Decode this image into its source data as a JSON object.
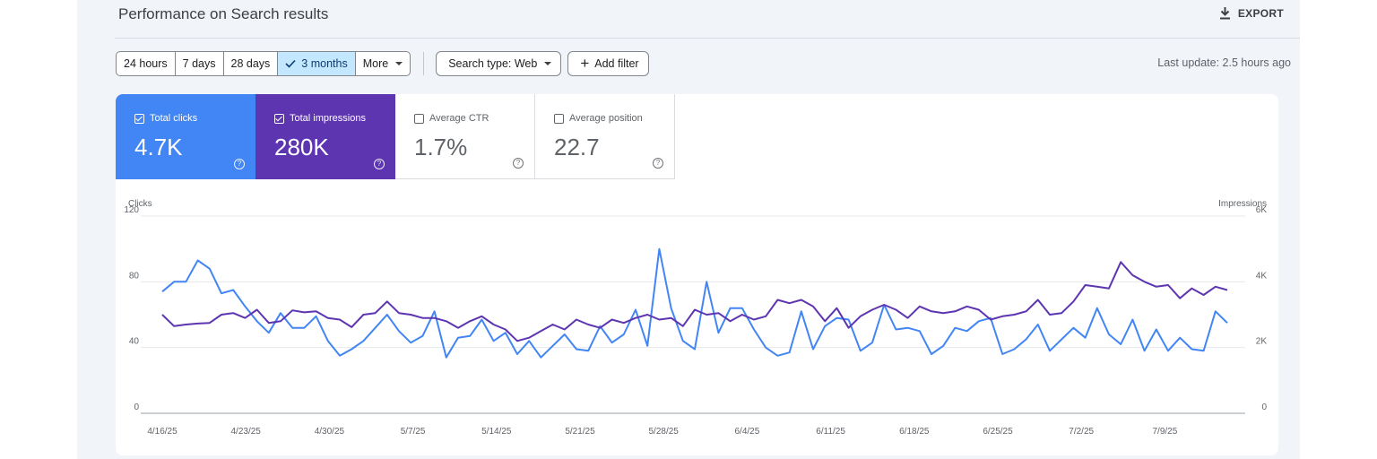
{
  "header": {
    "title": "Performance on Search results",
    "export_label": "EXPORT",
    "export_icon": "download-icon"
  },
  "toolbar": {
    "ranges": [
      "24 hours",
      "7 days",
      "28 days",
      "3 months",
      "More"
    ],
    "active_range": "3 months",
    "search_type_label": "Search type: Web",
    "add_filter_label": "Add filter",
    "last_update": "Last update: 2.5 hours ago"
  },
  "metrics": [
    {
      "label": "Total clicks",
      "value": "4.7K",
      "checked": true,
      "color": "#4285f4"
    },
    {
      "label": "Total impressions",
      "value": "280K",
      "checked": true,
      "color": "#5e35b1"
    },
    {
      "label": "Average CTR",
      "value": "1.7%",
      "checked": false
    },
    {
      "label": "Average position",
      "value": "22.7",
      "checked": false
    }
  ],
  "chart_data": {
    "type": "line",
    "x_tick_labels": [
      "4/16/25",
      "4/23/25",
      "4/30/25",
      "5/7/25",
      "5/14/25",
      "5/21/25",
      "5/28/25",
      "6/4/25",
      "6/11/25",
      "6/18/25",
      "6/25/25",
      "7/2/25",
      "7/9/25"
    ],
    "left_axis": {
      "label": "Clicks",
      "ticks": [
        "0",
        "40",
        "80",
        "120"
      ],
      "range": [
        0,
        120
      ]
    },
    "right_axis": {
      "label": "Impressions",
      "ticks": [
        "0",
        "2K",
        "4K",
        "6K"
      ],
      "range": [
        0,
        6000
      ]
    },
    "grid": true,
    "series": [
      {
        "name": "Total clicks",
        "color": "#4285f4",
        "axis": "left",
        "values": [
          74,
          80,
          80,
          93,
          88,
          73,
          75,
          65,
          56,
          49,
          61,
          52,
          52,
          59,
          44,
          35,
          39,
          44,
          52,
          60,
          50,
          43,
          47,
          62,
          34,
          46,
          47,
          57,
          44,
          49,
          36,
          44,
          34,
          41,
          48,
          39,
          38,
          53,
          43,
          48,
          63,
          41,
          100,
          64,
          44,
          39,
          80,
          49,
          64,
          64,
          51,
          40,
          35,
          37,
          62,
          39,
          53,
          58,
          57,
          38,
          43,
          66,
          51,
          52,
          50,
          36,
          41,
          52,
          50,
          56,
          58,
          36,
          39,
          45,
          54,
          38,
          45,
          52,
          46,
          64,
          48,
          42,
          57,
          38,
          51,
          38,
          46,
          39,
          38,
          62,
          55
        ]
      },
      {
        "name": "Total impressions",
        "color": "#5e35b1",
        "axis": "right",
        "values": [
          3000,
          2650,
          2700,
          2730,
          2750,
          3000,
          3050,
          2900,
          3150,
          2750,
          2800,
          3130,
          3070,
          3100,
          2900,
          2850,
          2620,
          3000,
          3050,
          3400,
          3050,
          3000,
          2900,
          2900,
          2800,
          2600,
          2800,
          2950,
          2700,
          2550,
          2200,
          2300,
          2500,
          2700,
          2550,
          2850,
          2700,
          2600,
          2850,
          2750,
          2900,
          3000,
          2850,
          2900,
          2650,
          3150,
          3000,
          3050,
          2800,
          3000,
          2850,
          2950,
          3450,
          3350,
          3450,
          3250,
          2800,
          3200,
          2600,
          2950,
          3150,
          3300,
          3150,
          2900,
          3250,
          3100,
          3050,
          3100,
          3250,
          3150,
          2850,
          2950,
          3000,
          3100,
          3450,
          3000,
          3050,
          3400,
          3900,
          3850,
          3800,
          4600,
          4200,
          4000,
          3850,
          3900,
          3500,
          3800,
          3600,
          3850,
          3750
        ]
      }
    ]
  }
}
